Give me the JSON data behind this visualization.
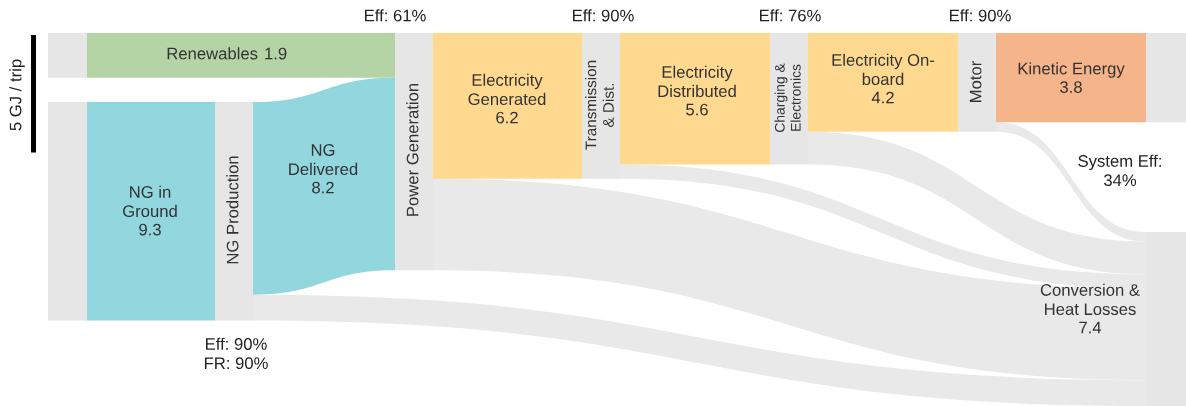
{
  "chart_data": {
    "type": "other",
    "categories": [
      "Renewables",
      "NG in\nGround",
      "NG Production",
      "NG\nDelivered",
      "Power Generation",
      "Electricity\nGenerated",
      "Transmission\n& Dist.",
      "Electricity\nDistributed",
      "Charging &\nElectronics",
      "Electricity On-\nboard",
      "Motor",
      "Kinetic Energy",
      "Conversion &\nHeat Losses"
    ],
    "values": [
      1.9,
      9.3,
      null,
      8.2,
      null,
      6.2,
      null,
      5.6,
      null,
      4.2,
      null,
      3.8,
      7.4
    ],
    "colors": [
      "#b5d4a6",
      "#92d6de",
      "#e6e6e6",
      "#92d6de",
      "#e6e6e6",
      "#ffd98f",
      "#e6e6e6",
      "#ffd98f",
      "#e6e6e6",
      "#ffd98f",
      "#e6e6e6",
      "#f5b48a",
      "#e6e6e6"
    ],
    "data_labels": true,
    "annotations": [
      "Eff: 61%",
      "Eff: 90%",
      "Eff: 76%",
      "Eff: 90%",
      "Eff: 90%\nFR: 90%",
      "System Eff:\n34%",
      "5 GJ / trip"
    ]
  }
}
